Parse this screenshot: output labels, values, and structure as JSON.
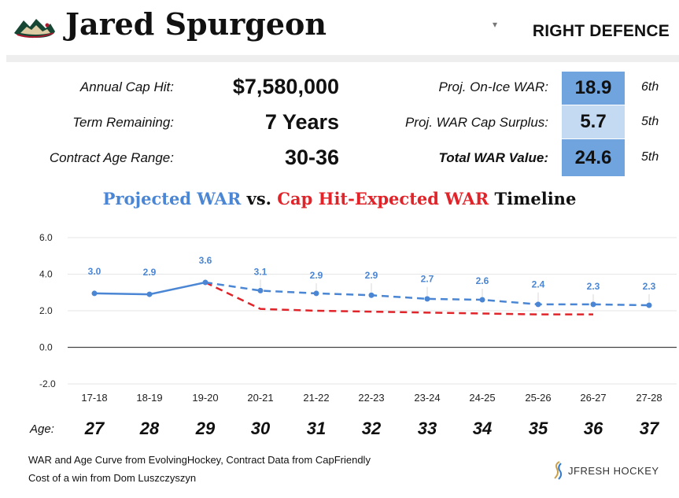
{
  "header": {
    "player_name": "Jared Spurgeon",
    "position": "RIGHT DEFENCE",
    "team_logo": "minnesota-wild-logo",
    "dropdown_icon": "caret-down-icon"
  },
  "contract": {
    "cap_hit_label": "Annual Cap Hit:",
    "cap_hit_value": "$7,580,000",
    "term_label": "Term Remaining:",
    "term_value": "7 Years",
    "age_range_label": "Contract Age Range:",
    "age_range_value": "30-36"
  },
  "war": {
    "onice_label": "Proj. On-Ice WAR:",
    "onice_value": "18.9",
    "onice_rank": "6th",
    "surplus_label": "Proj. WAR Cap Surplus:",
    "surplus_value": "5.7",
    "surplus_rank": "5th",
    "total_label": "Total WAR Value:",
    "total_value": "24.6",
    "total_rank": "5th"
  },
  "chart_title": {
    "part1": "Projected WAR",
    "part2": " vs. ",
    "part3": "Cap Hit-Expected WAR",
    "part4": " Timeline"
  },
  "colors": {
    "projected": "#4a86d4",
    "expected": "#e0242a",
    "box_dark": "#6fa4de",
    "box_light": "#c3daf2"
  },
  "chart_data": {
    "type": "line",
    "categories": [
      "17-18",
      "18-19",
      "19-20",
      "20-21",
      "21-22",
      "22-23",
      "23-24",
      "24-25",
      "25-26",
      "26-27",
      "27-28"
    ],
    "ylim": [
      -2.0,
      6.0
    ],
    "yticks": [
      "6.0",
      "4.0",
      "2.0",
      "0.0",
      "-2.0"
    ],
    "grid": true,
    "series": [
      {
        "name": "Projected WAR",
        "values": [
          3.0,
          2.9,
          3.6,
          3.1,
          2.9,
          2.9,
          2.7,
          2.6,
          2.4,
          2.3,
          2.3
        ],
        "plotted": [
          2.95,
          2.9,
          3.55,
          3.1,
          2.95,
          2.85,
          2.65,
          2.6,
          2.35,
          2.35,
          2.3
        ],
        "style": "solid through 19-20, dashed after"
      },
      {
        "name": "Cap Hit-Expected WAR",
        "values": [
          null,
          null,
          3.55,
          2.1,
          2.0,
          1.95,
          1.9,
          1.85,
          1.8,
          1.8,
          null
        ],
        "style": "dashed"
      }
    ],
    "age_label": "Age:",
    "ages": [
      "27",
      "28",
      "29",
      "30",
      "31",
      "32",
      "33",
      "34",
      "35",
      "36",
      "37"
    ]
  },
  "footer": {
    "line1": "WAR and Age Curve from EvolvingHockey, Contract Data from CapFriendly",
    "line2": "Cost of a win from Dom Luszczyszyn",
    "brand": "JFRESH HOCKEY"
  }
}
